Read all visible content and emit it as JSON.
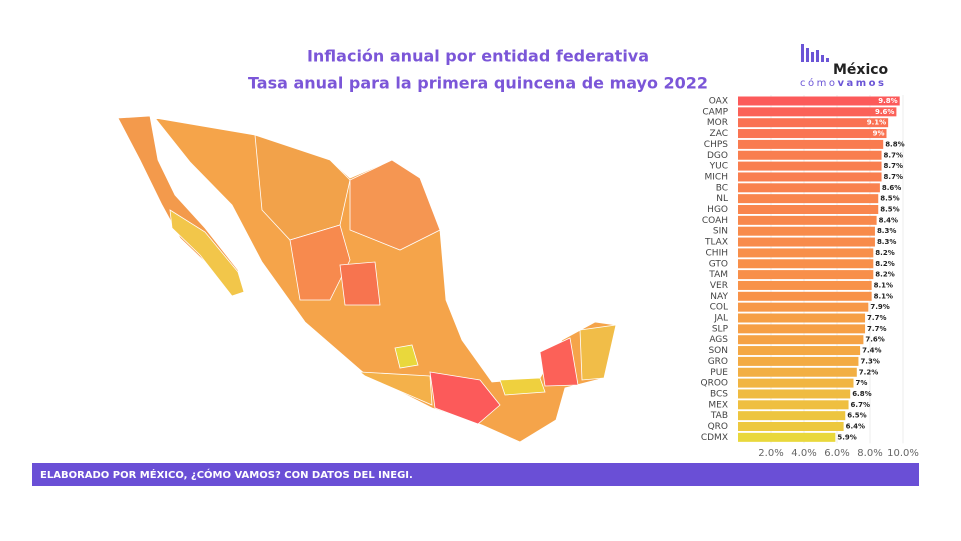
{
  "chart_data": {
    "type": "bar",
    "orientation": "horizontal",
    "title": "Inflación anual por entidad federativa",
    "subtitle": "Tasa anual para la primera quincena de mayo 2022",
    "categories": [
      "OAX",
      "CAMP",
      "MOR",
      "ZAC",
      "CHPS",
      "DGO",
      "YUC",
      "MICH",
      "BC",
      "NL",
      "HGO",
      "COAH",
      "SIN",
      "TLAX",
      "CHIH",
      "GTO",
      "TAM",
      "VER",
      "NAY",
      "COL",
      "JAL",
      "SLP",
      "AGS",
      "SON",
      "GRO",
      "PUE",
      "QROO",
      "BCS",
      "MEX",
      "TAB",
      "QRO",
      "CDMX"
    ],
    "values": [
      9.8,
      9.6,
      9.1,
      9,
      8.8,
      8.7,
      8.7,
      8.7,
      8.6,
      8.5,
      8.5,
      8.4,
      8.3,
      8.3,
      8.2,
      8.2,
      8.2,
      8.1,
      8.1,
      7.9,
      7.7,
      7.7,
      7.6,
      7.4,
      7.3,
      7.2,
      7,
      6.8,
      6.7,
      6.5,
      6.4,
      5.9
    ],
    "value_labels": [
      "9.8%",
      "9.6%",
      "9.1%",
      "9%",
      "8.8%",
      "8.7%",
      "8.7%",
      "8.7%",
      "8.6%",
      "8.5%",
      "8.5%",
      "8.4%",
      "8.3%",
      "8.3%",
      "8.2%",
      "8.2%",
      "8.2%",
      "8.1%",
      "8.1%",
      "7.9%",
      "7.7%",
      "7.7%",
      "7.6%",
      "7.4%",
      "7.3%",
      "7.2%",
      "7%",
      "6.8%",
      "6.7%",
      "6.5%",
      "6.4%",
      "5.9%"
    ],
    "color_scale": [
      "#e9d83c",
      "#f79a46",
      "#fc5a5a"
    ],
    "xlim": [
      0,
      10.2
    ],
    "xticks": [
      {
        "value": 2,
        "label": "2.0%"
      },
      {
        "value": 4,
        "label": "4.0%"
      },
      {
        "value": 6,
        "label": "6.0%"
      },
      {
        "value": 8,
        "label": "8.0%"
      },
      {
        "value": 10,
        "label": "10.0%"
      }
    ],
    "grid": true
  },
  "logo": {
    "name": "México",
    "tag_light": "cómo",
    "tag_bold": "vamos"
  },
  "footer": {
    "text": "ELABORADO POR MÉXICO, ¿CÓMO VAMOS? CON DATOS DEL INEGI."
  }
}
